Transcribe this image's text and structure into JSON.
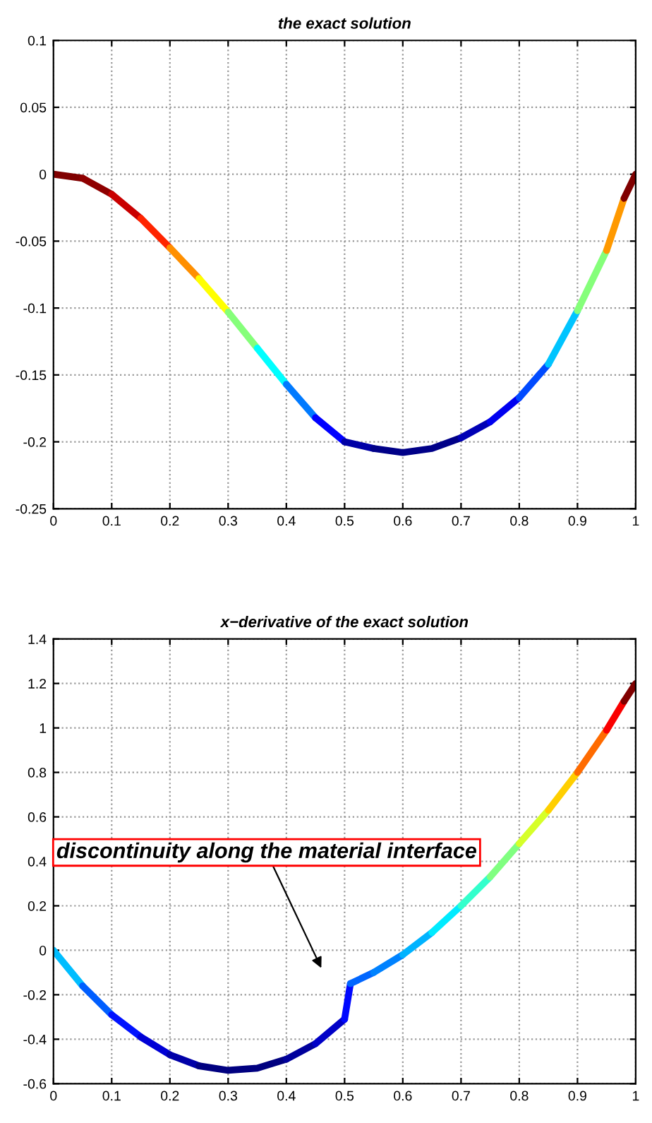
{
  "chart_data": [
    {
      "type": "line",
      "title": "the exact solution",
      "grid": true,
      "marker": "none",
      "line_style": "solid",
      "xlim": [
        0,
        1
      ],
      "xticks": [
        0,
        0.1,
        0.2,
        0.3,
        0.4,
        0.5,
        0.6,
        0.7,
        0.8,
        0.9,
        1
      ],
      "ylim": [
        -0.25,
        0.1
      ],
      "yticks": [
        -0.25,
        -0.2,
        -0.15,
        -0.1,
        -0.05,
        0,
        0.05,
        0.1
      ],
      "series": [
        {
          "x": [
            0,
            0.05
          ],
          "values": [
            0,
            -0.003
          ],
          "color": "#800000"
        },
        {
          "x": [
            0.05,
            0.1
          ],
          "values": [
            -0.003,
            -0.015
          ],
          "color": "#8f0000"
        },
        {
          "x": [
            0.1,
            0.15
          ],
          "values": [
            -0.015,
            -0.033
          ],
          "color": "#c90000"
        },
        {
          "x": [
            0.15,
            0.2
          ],
          "values": [
            -0.033,
            -0.055
          ],
          "color": "#ff2400"
        },
        {
          "x": [
            0.2,
            0.25
          ],
          "values": [
            -0.055,
            -0.078
          ],
          "color": "#ff8f00"
        },
        {
          "x": [
            0.25,
            0.3
          ],
          "values": [
            -0.078,
            -0.103
          ],
          "color": "#ffff00"
        },
        {
          "x": [
            0.3,
            0.35
          ],
          "values": [
            -0.103,
            -0.13
          ],
          "color": "#85ff7a"
        },
        {
          "x": [
            0.35,
            0.4
          ],
          "values": [
            -0.13,
            -0.157
          ],
          "color": "#00ffff"
        },
        {
          "x": [
            0.4,
            0.45
          ],
          "values": [
            -0.157,
            -0.182
          ],
          "color": "#007aff"
        },
        {
          "x": [
            0.45,
            0.5
          ],
          "values": [
            -0.182,
            -0.2
          ],
          "color": "#0000ff"
        },
        {
          "x": [
            0.5,
            0.55
          ],
          "values": [
            -0.2,
            -0.205
          ],
          "color": "#0000a6"
        },
        {
          "x": [
            0.55,
            0.6,
            0.65,
            0.7
          ],
          "values": [
            -0.205,
            -0.208,
            -0.205,
            -0.197
          ],
          "color": "#000088"
        },
        {
          "x": [
            0.7,
            0.75
          ],
          "values": [
            -0.197,
            -0.185
          ],
          "color": "#0000b5"
        },
        {
          "x": [
            0.75,
            0.8
          ],
          "values": [
            -0.185,
            -0.167
          ],
          "color": "#0000f0"
        },
        {
          "x": [
            0.8,
            0.85
          ],
          "values": [
            -0.167,
            -0.142
          ],
          "color": "#004aff"
        },
        {
          "x": [
            0.85,
            0.9
          ],
          "values": [
            -0.142,
            -0.102
          ],
          "color": "#00c4ff"
        },
        {
          "x": [
            0.9,
            0.95
          ],
          "values": [
            -0.102,
            -0.057
          ],
          "color": "#85ff7a"
        },
        {
          "x": [
            0.95,
            0.98
          ],
          "values": [
            -0.057,
            -0.018
          ],
          "color": "#ff9900"
        },
        {
          "x": [
            0.98,
            1
          ],
          "values": [
            -0.018,
            0
          ],
          "color": "#800000"
        }
      ]
    },
    {
      "type": "line",
      "title": "x−derivative of the exact solution",
      "grid": true,
      "marker": "none",
      "line_style": "solid",
      "xlim": [
        0,
        1
      ],
      "xticks": [
        0,
        0.1,
        0.2,
        0.3,
        0.4,
        0.5,
        0.6,
        0.7,
        0.8,
        0.9,
        1
      ],
      "ylim": [
        -0.6,
        1.4
      ],
      "yticks": [
        -0.6,
        -0.4,
        -0.2,
        0,
        0.2,
        0.4,
        0.6,
        0.8,
        1,
        1.2,
        1.4
      ],
      "series": [
        {
          "x": [
            0,
            0.05
          ],
          "values": [
            0,
            -0.16
          ],
          "color": "#00bdff"
        },
        {
          "x": [
            0.05,
            0.1
          ],
          "values": [
            -0.16,
            -0.29
          ],
          "color": "#005eff"
        },
        {
          "x": [
            0.1,
            0.15
          ],
          "values": [
            -0.29,
            -0.39
          ],
          "color": "#0012ff"
        },
        {
          "x": [
            0.15,
            0.2
          ],
          "values": [
            -0.39,
            -0.47
          ],
          "color": "#0000d6"
        },
        {
          "x": [
            0.2,
            0.25
          ],
          "values": [
            -0.47,
            -0.52
          ],
          "color": "#0000a8"
        },
        {
          "x": [
            0.25,
            0.3,
            0.35,
            0.4
          ],
          "values": [
            -0.52,
            -0.54,
            -0.53,
            -0.49
          ],
          "color": "#000080"
        },
        {
          "x": [
            0.4,
            0.45
          ],
          "values": [
            -0.49,
            -0.42
          ],
          "color": "#00009c"
        },
        {
          "x": [
            0.45,
            0.5
          ],
          "values": [
            -0.42,
            -0.31
          ],
          "color": "#0000c7"
        },
        {
          "x": [
            0.5,
            0.51
          ],
          "values": [
            -0.31,
            -0.15
          ],
          "color": "#0008ff"
        },
        {
          "x": [
            0.51,
            0.55
          ],
          "values": [
            -0.15,
            -0.1
          ],
          "color": "#0066ff"
        },
        {
          "x": [
            0.55,
            0.6
          ],
          "values": [
            -0.1,
            -0.02
          ],
          "color": "#0082ff"
        },
        {
          "x": [
            0.6,
            0.65
          ],
          "values": [
            -0.02,
            0.08
          ],
          "color": "#00b3ff"
        },
        {
          "x": [
            0.65,
            0.7
          ],
          "values": [
            0.08,
            0.2
          ],
          "color": "#00ebff"
        },
        {
          "x": [
            0.7,
            0.75
          ],
          "values": [
            0.2,
            0.33
          ],
          "color": "#33ffcc"
        },
        {
          "x": [
            0.75,
            0.8
          ],
          "values": [
            0.33,
            0.48
          ],
          "color": "#80ff80"
        },
        {
          "x": [
            0.8,
            0.85
          ],
          "values": [
            0.48,
            0.63
          ],
          "color": "#d6ff29"
        },
        {
          "x": [
            0.85,
            0.9
          ],
          "values": [
            0.63,
            0.8
          ],
          "color": "#ffcf00"
        },
        {
          "x": [
            0.9,
            0.95
          ],
          "values": [
            0.8,
            0.99
          ],
          "color": "#ff6b00"
        },
        {
          "x": [
            0.95,
            0.98
          ],
          "values": [
            0.99,
            1.12
          ],
          "color": "#fa0000"
        },
        {
          "x": [
            0.98,
            1
          ],
          "values": [
            1.12,
            1.2
          ],
          "color": "#800000"
        }
      ],
      "annotations": [
        "discontinuity along the material interface"
      ]
    }
  ]
}
